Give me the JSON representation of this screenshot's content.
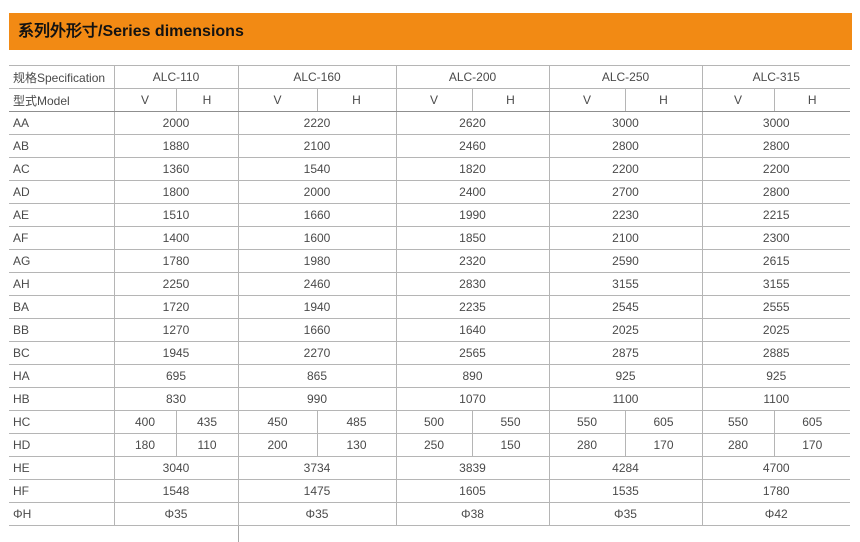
{
  "title_bar": {
    "text": "系列外形寸/Series dimensions",
    "bg_color": "#F28A14"
  },
  "table": {
    "spec_label": "规格Specification",
    "model_label": "型式Model",
    "models": [
      "ALC-110",
      "ALC-160",
      "ALC-200",
      "ALC-250",
      "ALC-315"
    ],
    "sub_headers": [
      "V",
      "H"
    ],
    "rows": [
      {
        "label": "AA",
        "values": [
          "2000",
          "2220",
          "2620",
          "3000",
          "3000"
        ]
      },
      {
        "label": "AB",
        "values": [
          "1880",
          "2100",
          "2460",
          "2800",
          "2800"
        ]
      },
      {
        "label": "AC",
        "values": [
          "1360",
          "1540",
          "1820",
          "2200",
          "2200"
        ]
      },
      {
        "label": "AD",
        "values": [
          "1800",
          "2000",
          "2400",
          "2700",
          "2800"
        ]
      },
      {
        "label": "AE",
        "values": [
          "1510",
          "1660",
          "1990",
          "2230",
          "2215"
        ]
      },
      {
        "label": "AF",
        "values": [
          "1400",
          "1600",
          "1850",
          "2100",
          "2300"
        ]
      },
      {
        "label": "AG",
        "values": [
          "1780",
          "1980",
          "2320",
          "2590",
          "2615"
        ]
      },
      {
        "label": "AH",
        "values": [
          "2250",
          "2460",
          "2830",
          "3155",
          "3155"
        ]
      },
      {
        "label": "BA",
        "values": [
          "1720",
          "1940",
          "2235",
          "2545",
          "2555"
        ]
      },
      {
        "label": "BB",
        "values": [
          "1270",
          "1660",
          "1640",
          "2025",
          "2025"
        ]
      },
      {
        "label": "BC",
        "values": [
          "1945",
          "2270",
          "2565",
          "2875",
          "2885"
        ]
      },
      {
        "label": "HA",
        "values": [
          "695",
          "865",
          "890",
          "925",
          "925"
        ]
      },
      {
        "label": "HB",
        "values": [
          "830",
          "990",
          "1070",
          "1100",
          "1100"
        ]
      },
      {
        "label": "HC",
        "values": [
          [
            "400",
            "435"
          ],
          [
            "450",
            "485"
          ],
          [
            "500",
            "550"
          ],
          [
            "550",
            "605"
          ],
          [
            "550",
            "605"
          ]
        ]
      },
      {
        "label": "HD",
        "values": [
          [
            "180",
            "110"
          ],
          [
            "200",
            "130"
          ],
          [
            "250",
            "150"
          ],
          [
            "280",
            "170"
          ],
          [
            "280",
            "170"
          ]
        ]
      },
      {
        "label": "HE",
        "values": [
          "3040",
          "3734",
          "3839",
          "4284",
          "4700"
        ]
      },
      {
        "label": "HF",
        "values": [
          "1548",
          "1475",
          "1605",
          "1535",
          "1780"
        ]
      },
      {
        "label": "ΦH",
        "values": [
          "Φ35",
          "Φ35",
          "Φ38",
          "Φ35",
          "Φ42"
        ]
      }
    ]
  }
}
